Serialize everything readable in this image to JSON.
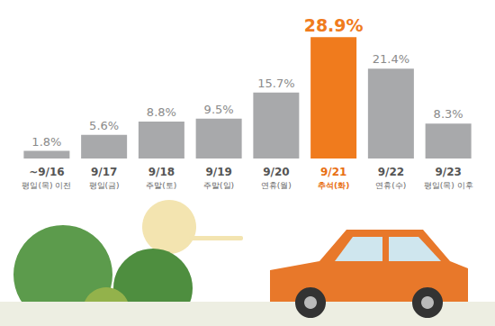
{
  "chart_data": {
    "type": "bar",
    "categories": [
      "~9/16",
      "9/17",
      "9/18",
      "9/19",
      "9/20",
      "9/21",
      "9/22",
      "9/23"
    ],
    "category_sublabels": [
      "평일(목) 이전",
      "평일(금)",
      "주말(토)",
      "주말(일)",
      "연휴(월)",
      "추석(화)",
      "연휴(수)",
      "평일(목) 이후"
    ],
    "values": [
      1.8,
      5.6,
      8.8,
      9.5,
      15.7,
      28.9,
      21.4,
      8.3
    ],
    "value_labels": [
      "1.8%",
      "5.6%",
      "8.8%",
      "9.5%",
      "15.7%",
      "28.9%",
      "21.4%",
      "8.3%"
    ],
    "colors": [
      "#a8a9ab",
      "#a8a9ab",
      "#a8a9ab",
      "#a8a9ab",
      "#a8a9ab",
      "#f07b1d",
      "#a8a9ab",
      "#a8a9ab"
    ],
    "data_labels": true,
    "tick_labels": "x",
    "grid": false
  }
}
